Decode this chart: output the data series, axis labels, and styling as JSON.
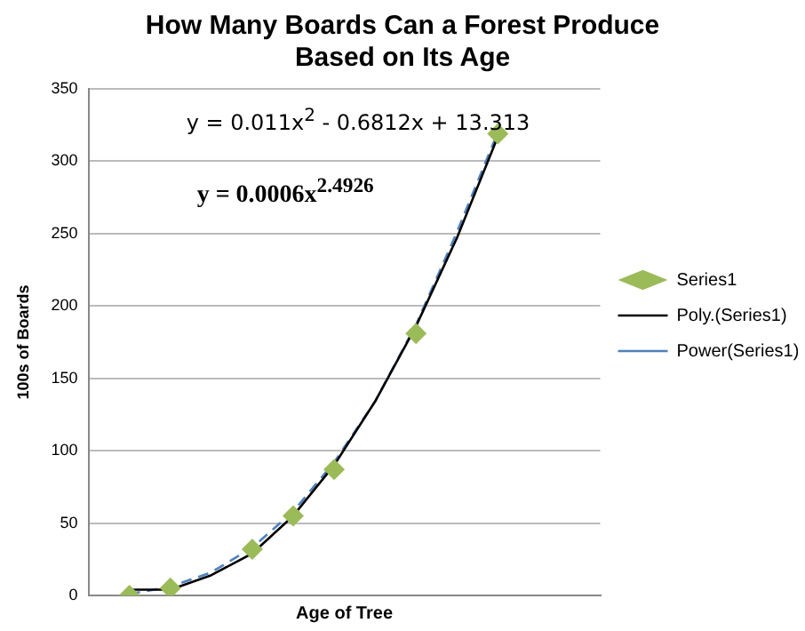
{
  "chart_data": {
    "type": "scatter",
    "title": "How Many Boards Can a Forest Produce Based on Its Age",
    "xlabel": "Age of Tree",
    "ylabel": "100s of Boards",
    "categories": [
      null,
      null,
      null,
      null,
      null,
      null,
      null,
      null,
      null,
      null
    ],
    "series": [
      {
        "name": "Series1",
        "color": "#9bbb59",
        "values": [
          0,
          5,
          null,
          32,
          55,
          87,
          null,
          181,
          null,
          319
        ],
        "marker": "diamond"
      },
      {
        "name": "Poly.(Series1)",
        "type": "line",
        "color": "#000000",
        "line_style": "solid",
        "marker": "none",
        "values": [
          4,
          4,
          14,
          29,
          55,
          90,
          134,
          186,
          247,
          317
        ]
      },
      {
        "name": "Power(Series1)",
        "type": "line",
        "color": "#4f81bd",
        "line_style": "dashed",
        "marker": "none",
        "values": [
          1,
          6,
          16,
          33,
          58,
          92,
          134,
          187,
          251,
          320
        ]
      }
    ],
    "ylim": [
      0,
      350
    ],
    "yticks": [
      0,
      50,
      100,
      150,
      200,
      250,
      300,
      350
    ],
    "tick_labels": "y",
    "grid": "y",
    "legend": "right",
    "annotations": [
      "y = 0.011x$^{2}$ - 0.6812x + 13.313",
      "y = 0.0006x$^{2.4926}$"
    ]
  }
}
